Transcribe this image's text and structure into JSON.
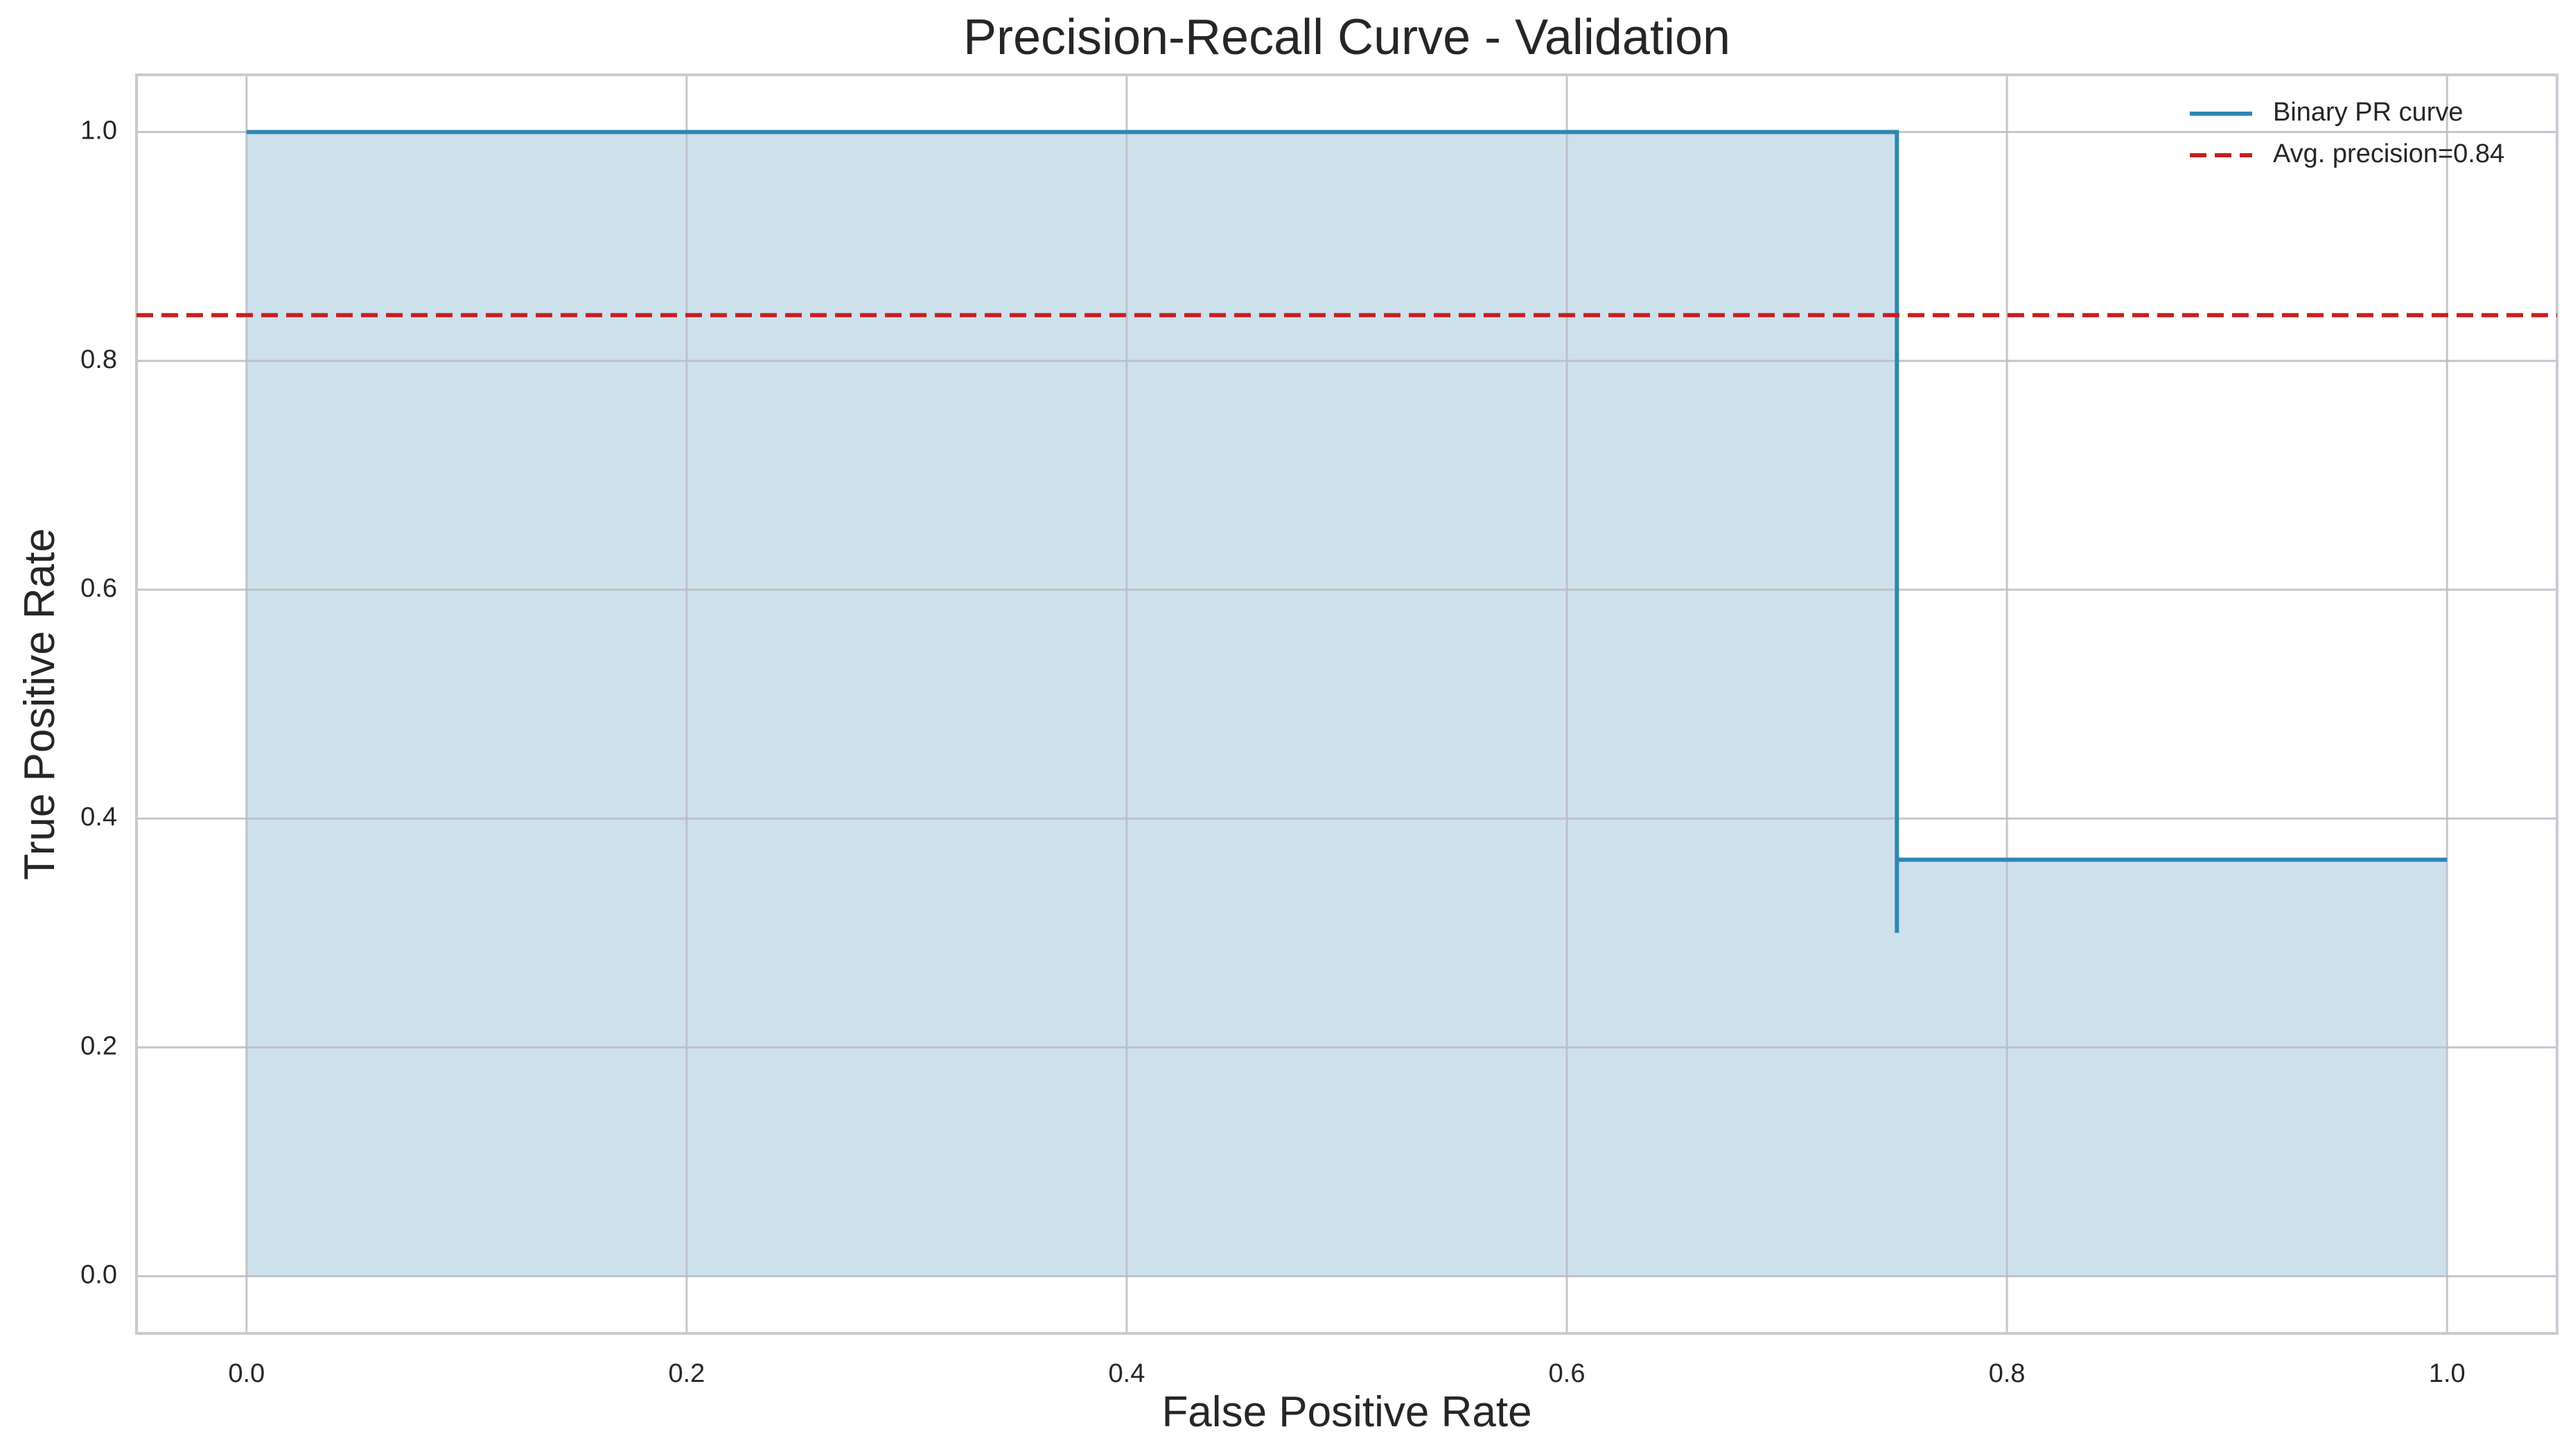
{
  "chart_data": {
    "type": "line",
    "title": "Precision-Recall Curve - Validation",
    "xlabel": "False Positive Rate",
    "ylabel": "True Positive Rate",
    "xlim": [
      -0.05,
      1.05
    ],
    "ylim": [
      -0.05,
      1.05
    ],
    "grid": true,
    "legend_position": "top-right",
    "x_ticks": [
      {
        "value": 0.0,
        "label": "0.0"
      },
      {
        "value": 0.2,
        "label": "0.2"
      },
      {
        "value": 0.4,
        "label": "0.4"
      },
      {
        "value": 0.6,
        "label": "0.6"
      },
      {
        "value": 0.8,
        "label": "0.8"
      },
      {
        "value": 1.0,
        "label": "1.0"
      }
    ],
    "y_ticks": [
      {
        "value": 0.0,
        "label": "0.0"
      },
      {
        "value": 0.2,
        "label": "0.2"
      },
      {
        "value": 0.4,
        "label": "0.4"
      },
      {
        "value": 0.6,
        "label": "0.6"
      },
      {
        "value": 0.8,
        "label": "0.8"
      },
      {
        "value": 1.0,
        "label": "1.0"
      }
    ],
    "series": [
      {
        "name": "Binary PR curve",
        "color": "#2e86b1",
        "fill_color": "#cde1ec",
        "points": [
          {
            "x": 0.0,
            "y": 1.0
          },
          {
            "x": 0.75,
            "y": 1.0
          },
          {
            "x": 0.75,
            "y": 0.3
          },
          {
            "x": 0.75,
            "y": 0.364
          },
          {
            "x": 1.0,
            "y": 0.364
          }
        ],
        "fill_points": [
          {
            "x": 0.0,
            "y": 0.0
          },
          {
            "x": 0.0,
            "y": 1.0
          },
          {
            "x": 0.75,
            "y": 1.0
          },
          {
            "x": 0.75,
            "y": 0.364
          },
          {
            "x": 1.0,
            "y": 0.364
          },
          {
            "x": 1.0,
            "y": 0.0
          }
        ]
      }
    ],
    "reference_lines": [
      {
        "name": "Avg. precision=0.84",
        "y": 0.84,
        "color": "#c81e1e",
        "style": "dashed"
      }
    ]
  }
}
